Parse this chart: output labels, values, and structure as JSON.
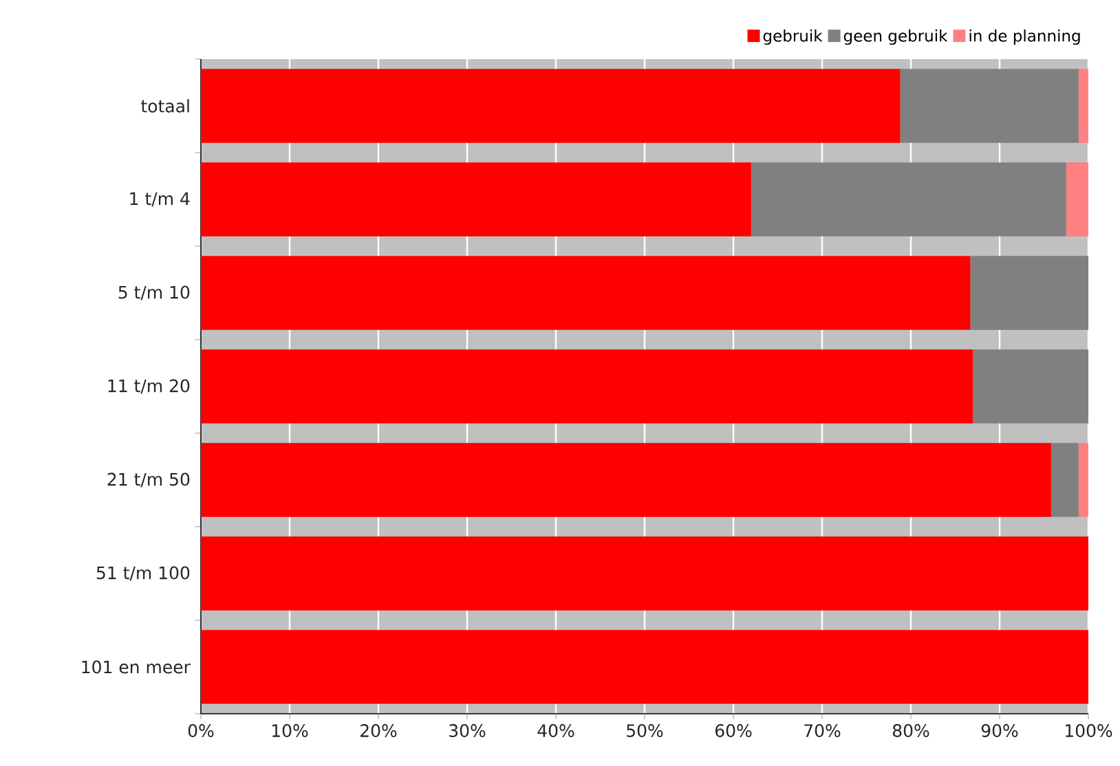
{
  "chart_data": {
    "type": "bar",
    "orientation": "horizontal",
    "stacked": true,
    "categories": [
      "totaal",
      "1 t/m 4",
      "5 t/m 10",
      "11 t/m 20",
      "21 t/m 50",
      "51 t/m 100",
      "101 en meer"
    ],
    "series": [
      {
        "name": "gebruik",
        "color": "#ff0000",
        "values": [
          78.8,
          62.0,
          86.7,
          87.0,
          95.8,
          100,
          100
        ]
      },
      {
        "name": "geen gebruik",
        "color": "#808080",
        "values": [
          20.1,
          35.5,
          13.3,
          13.0,
          3.1,
          0,
          0
        ]
      },
      {
        "name": "in de planning",
        "color": "#ff8080",
        "values": [
          1.1,
          2.5,
          0,
          0,
          1.1,
          0,
          0
        ]
      }
    ],
    "xlim": [
      0,
      100
    ],
    "xticks": [
      {
        "value": 0,
        "label": "0%"
      },
      {
        "value": 10,
        "label": "10%"
      },
      {
        "value": 20,
        "label": "20%"
      },
      {
        "value": 30,
        "label": "30%"
      },
      {
        "value": 40,
        "label": "40%"
      },
      {
        "value": 50,
        "label": "50%"
      },
      {
        "value": 60,
        "label": "60%"
      },
      {
        "value": 70,
        "label": "70%"
      },
      {
        "value": 80,
        "label": "80%"
      },
      {
        "value": 90,
        "label": "90%"
      },
      {
        "value": 100,
        "label": "100%"
      }
    ],
    "grid": "x",
    "legend": "top right"
  }
}
